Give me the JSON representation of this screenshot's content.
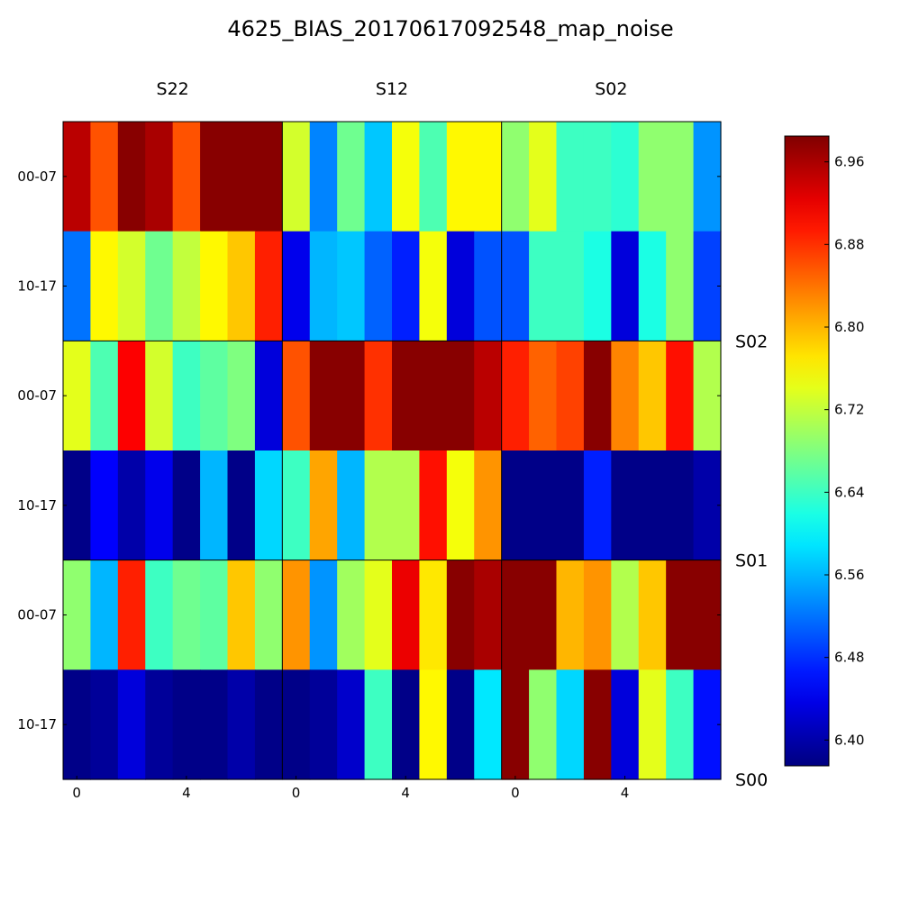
{
  "chart_data": {
    "type": "heatmap",
    "title": "4625_BIAS_20170617092548_map_noise",
    "colormap": "jet",
    "vmin": 6.375,
    "vmax": 6.985,
    "column_panels": [
      "S22",
      "S12",
      "S02"
    ],
    "row_panels": [
      "S02",
      "S01",
      "S00"
    ],
    "row_labels": [
      "00-07",
      "10-17",
      "00-07",
      "10-17",
      "00-07",
      "10-17"
    ],
    "x_tick_values": [
      0,
      4
    ],
    "colorbar_ticks": [
      6.96,
      6.88,
      6.8,
      6.72,
      6.64,
      6.56,
      6.48,
      6.4
    ],
    "colorbar_tick_labels": [
      "6.96",
      "6.88",
      "6.80",
      "6.72",
      "6.64",
      "6.56",
      "6.48",
      "6.40"
    ],
    "cells_per_block": 8,
    "values": [
      [
        6.95,
        6.86,
        6.98,
        6.96,
        6.86,
        6.98,
        6.98,
        6.98,
        6.73,
        6.53,
        6.67,
        6.57,
        6.75,
        6.65,
        6.76,
        6.76,
        6.69,
        6.74,
        6.64,
        6.64,
        6.63,
        6.69,
        6.69,
        6.54
      ],
      [
        6.52,
        6.76,
        6.73,
        6.67,
        6.72,
        6.76,
        6.79,
        6.89,
        6.44,
        6.56,
        6.57,
        6.51,
        6.47,
        6.75,
        6.43,
        6.5,
        6.5,
        6.64,
        6.64,
        6.62,
        6.43,
        6.62,
        6.69,
        6.49
      ],
      [
        6.74,
        6.65,
        6.91,
        6.73,
        6.64,
        6.66,
        6.68,
        6.43,
        6.86,
        6.98,
        6.98,
        6.88,
        6.98,
        6.98,
        6.98,
        6.95,
        6.89,
        6.85,
        6.87,
        6.98,
        6.83,
        6.79,
        6.9,
        6.71
      ],
      [
        6.38,
        6.45,
        6.4,
        6.44,
        6.38,
        6.56,
        6.38,
        6.58,
        6.64,
        6.81,
        6.56,
        6.71,
        6.71,
        6.9,
        6.75,
        6.82,
        6.38,
        6.38,
        6.38,
        6.47,
        6.38,
        6.38,
        6.38,
        6.4
      ],
      [
        6.69,
        6.56,
        6.89,
        6.64,
        6.67,
        6.66,
        6.79,
        6.69,
        6.82,
        6.54,
        6.7,
        6.74,
        6.92,
        6.77,
        6.98,
        6.96,
        6.98,
        6.98,
        6.8,
        6.82,
        6.71,
        6.79,
        6.98,
        6.98
      ],
      [
        6.38,
        6.39,
        6.43,
        6.39,
        6.38,
        6.38,
        6.4,
        6.38,
        6.38,
        6.39,
        6.42,
        6.64,
        6.38,
        6.76,
        6.38,
        6.59,
        6.98,
        6.69,
        6.58,
        6.98,
        6.43,
        6.74,
        6.64,
        6.46
      ]
    ]
  }
}
